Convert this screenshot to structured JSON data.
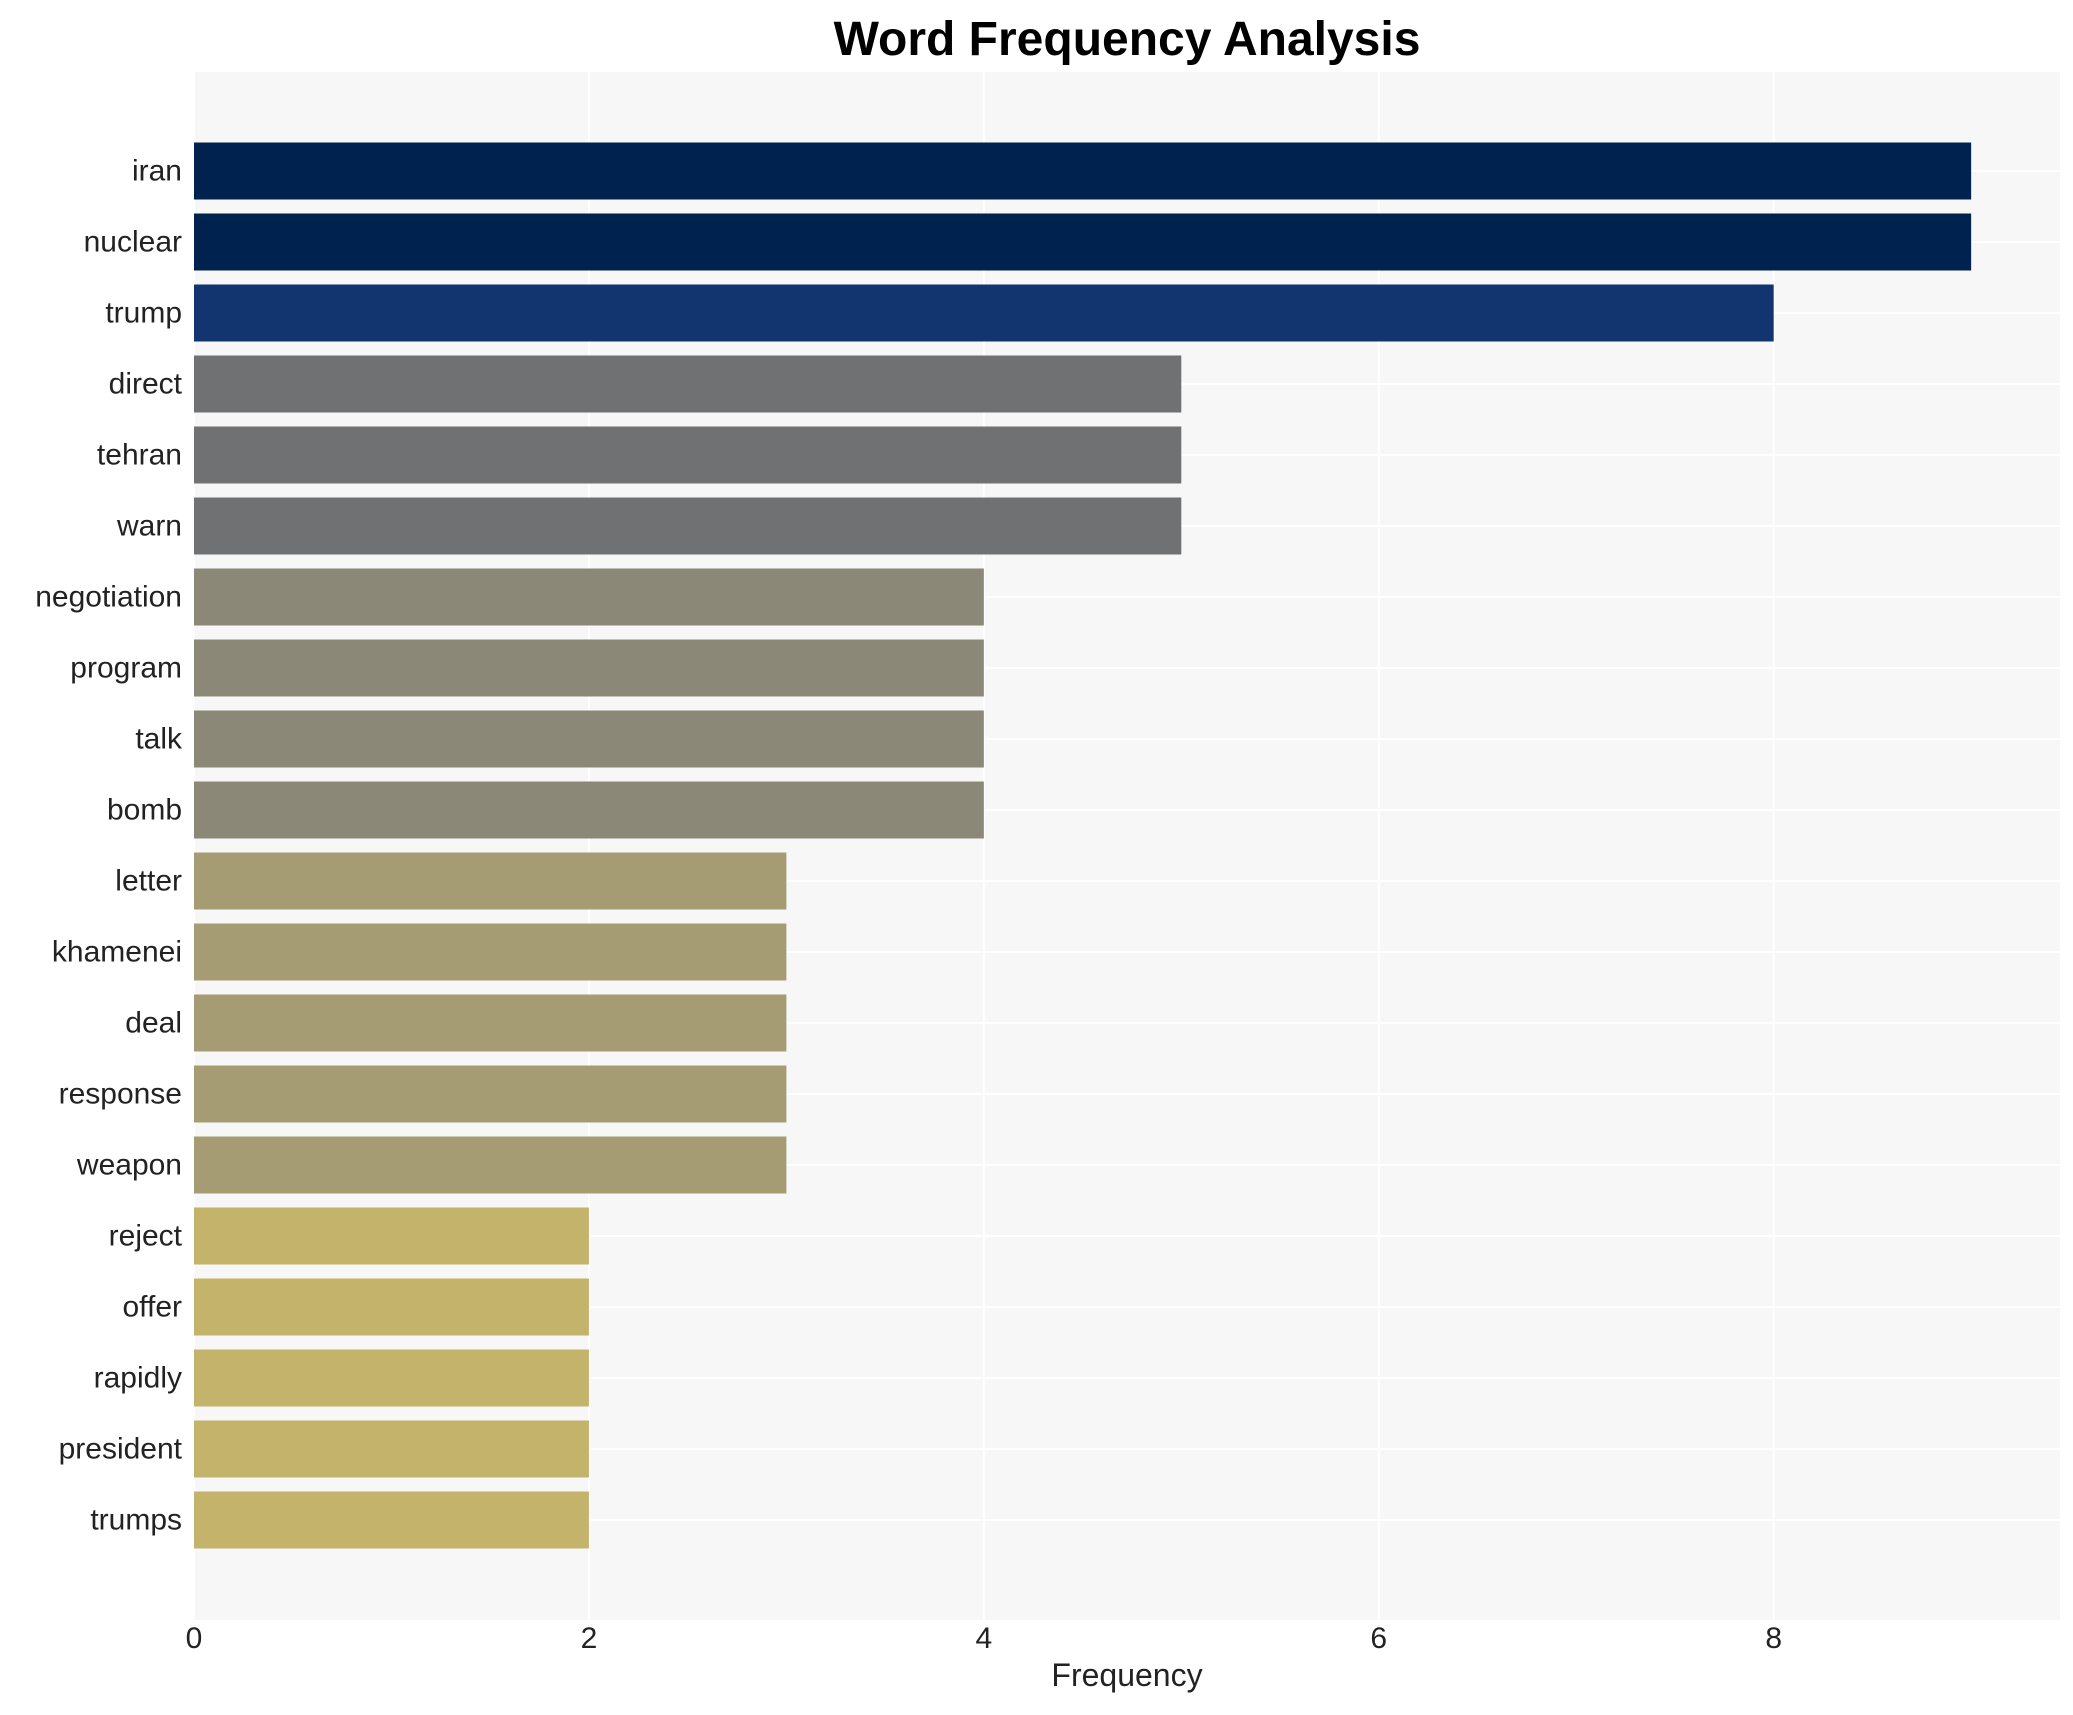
{
  "chart_data": {
    "type": "bar",
    "orientation": "horizontal",
    "title": "Word Frequency Analysis",
    "xlabel": "Frequency",
    "ylabel": "",
    "xlim": [
      0,
      9.45
    ],
    "xticks": [
      0,
      2,
      4,
      6,
      8
    ],
    "grid": true,
    "legend": "none",
    "categories": [
      "iran",
      "nuclear",
      "trump",
      "direct",
      "tehran",
      "warn",
      "negotiation",
      "program",
      "talk",
      "bomb",
      "letter",
      "khamenei",
      "deal",
      "response",
      "weapon",
      "reject",
      "offer",
      "rapidly",
      "president",
      "trumps"
    ],
    "values": [
      9,
      9,
      8,
      5,
      5,
      5,
      4,
      4,
      4,
      4,
      3,
      3,
      3,
      3,
      3,
      2,
      2,
      2,
      2,
      2
    ],
    "bar_colors": [
      "#00224e",
      "#00224e",
      "#123570",
      "#707173",
      "#707173",
      "#707173",
      "#8b8878",
      "#8b8878",
      "#8b8878",
      "#8b8878",
      "#a59c74",
      "#a59c74",
      "#a59c74",
      "#a59c74",
      "#a59c74",
      "#c4b36a",
      "#c4b36a",
      "#c4b36a",
      "#c4b36a",
      "#c4b36a"
    ],
    "plot_background": "#f7f7f7",
    "grid_color": "#ffffff"
  }
}
